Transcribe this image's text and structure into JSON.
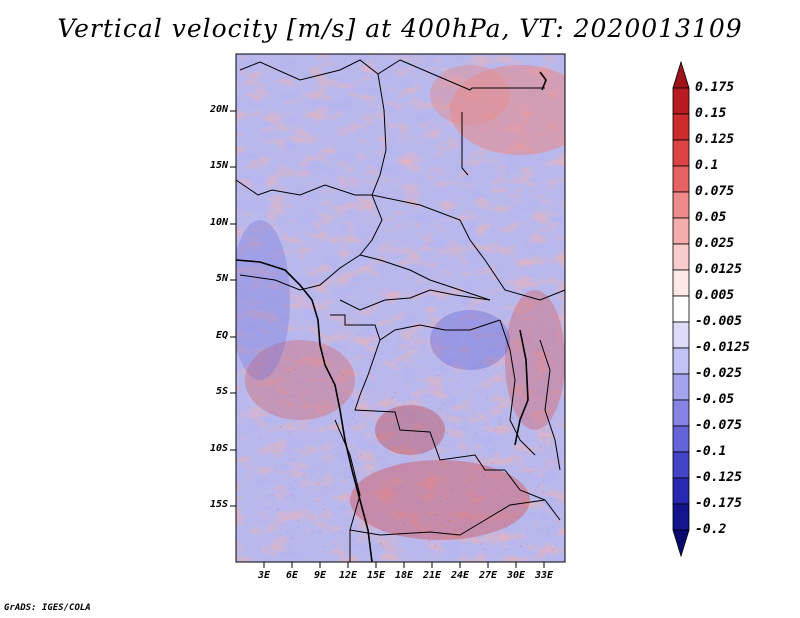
{
  "title": "Vertical velocity [m/s] at 400hPa, VT: 2020013109",
  "credit": "GrADS: IGES/COLA",
  "map": {
    "lat_labels": [
      "20N",
      "15N",
      "10N",
      "5N",
      "EQ",
      "5S",
      "10S",
      "15S"
    ],
    "lon_labels": [
      "3E",
      "6E",
      "9E",
      "12E",
      "15E",
      "18E",
      "21E",
      "24E",
      "27E",
      "30E",
      "33E"
    ]
  },
  "colorbar": {
    "labels": [
      "0.175",
      "0.15",
      "0.125",
      "0.1",
      "0.075",
      "0.05",
      "0.025",
      "0.0125",
      "0.005",
      "-0.005",
      "-0.0125",
      "-0.025",
      "-0.05",
      "-0.075",
      "-0.1",
      "-0.125",
      "-0.175",
      "-0.2"
    ],
    "colors": [
      "#a01418",
      "#b81c20",
      "#cc2c2c",
      "#dc4444",
      "#e66262",
      "#ee8a8a",
      "#f4acac",
      "#f9cccc",
      "#fde8e8",
      "#ffffff",
      "#dcdcf8",
      "#c2c2f4",
      "#a4a4ee",
      "#8484e4",
      "#6464d8",
      "#4444c8",
      "#2828b0",
      "#14148c",
      "#0a0a6e"
    ]
  }
}
